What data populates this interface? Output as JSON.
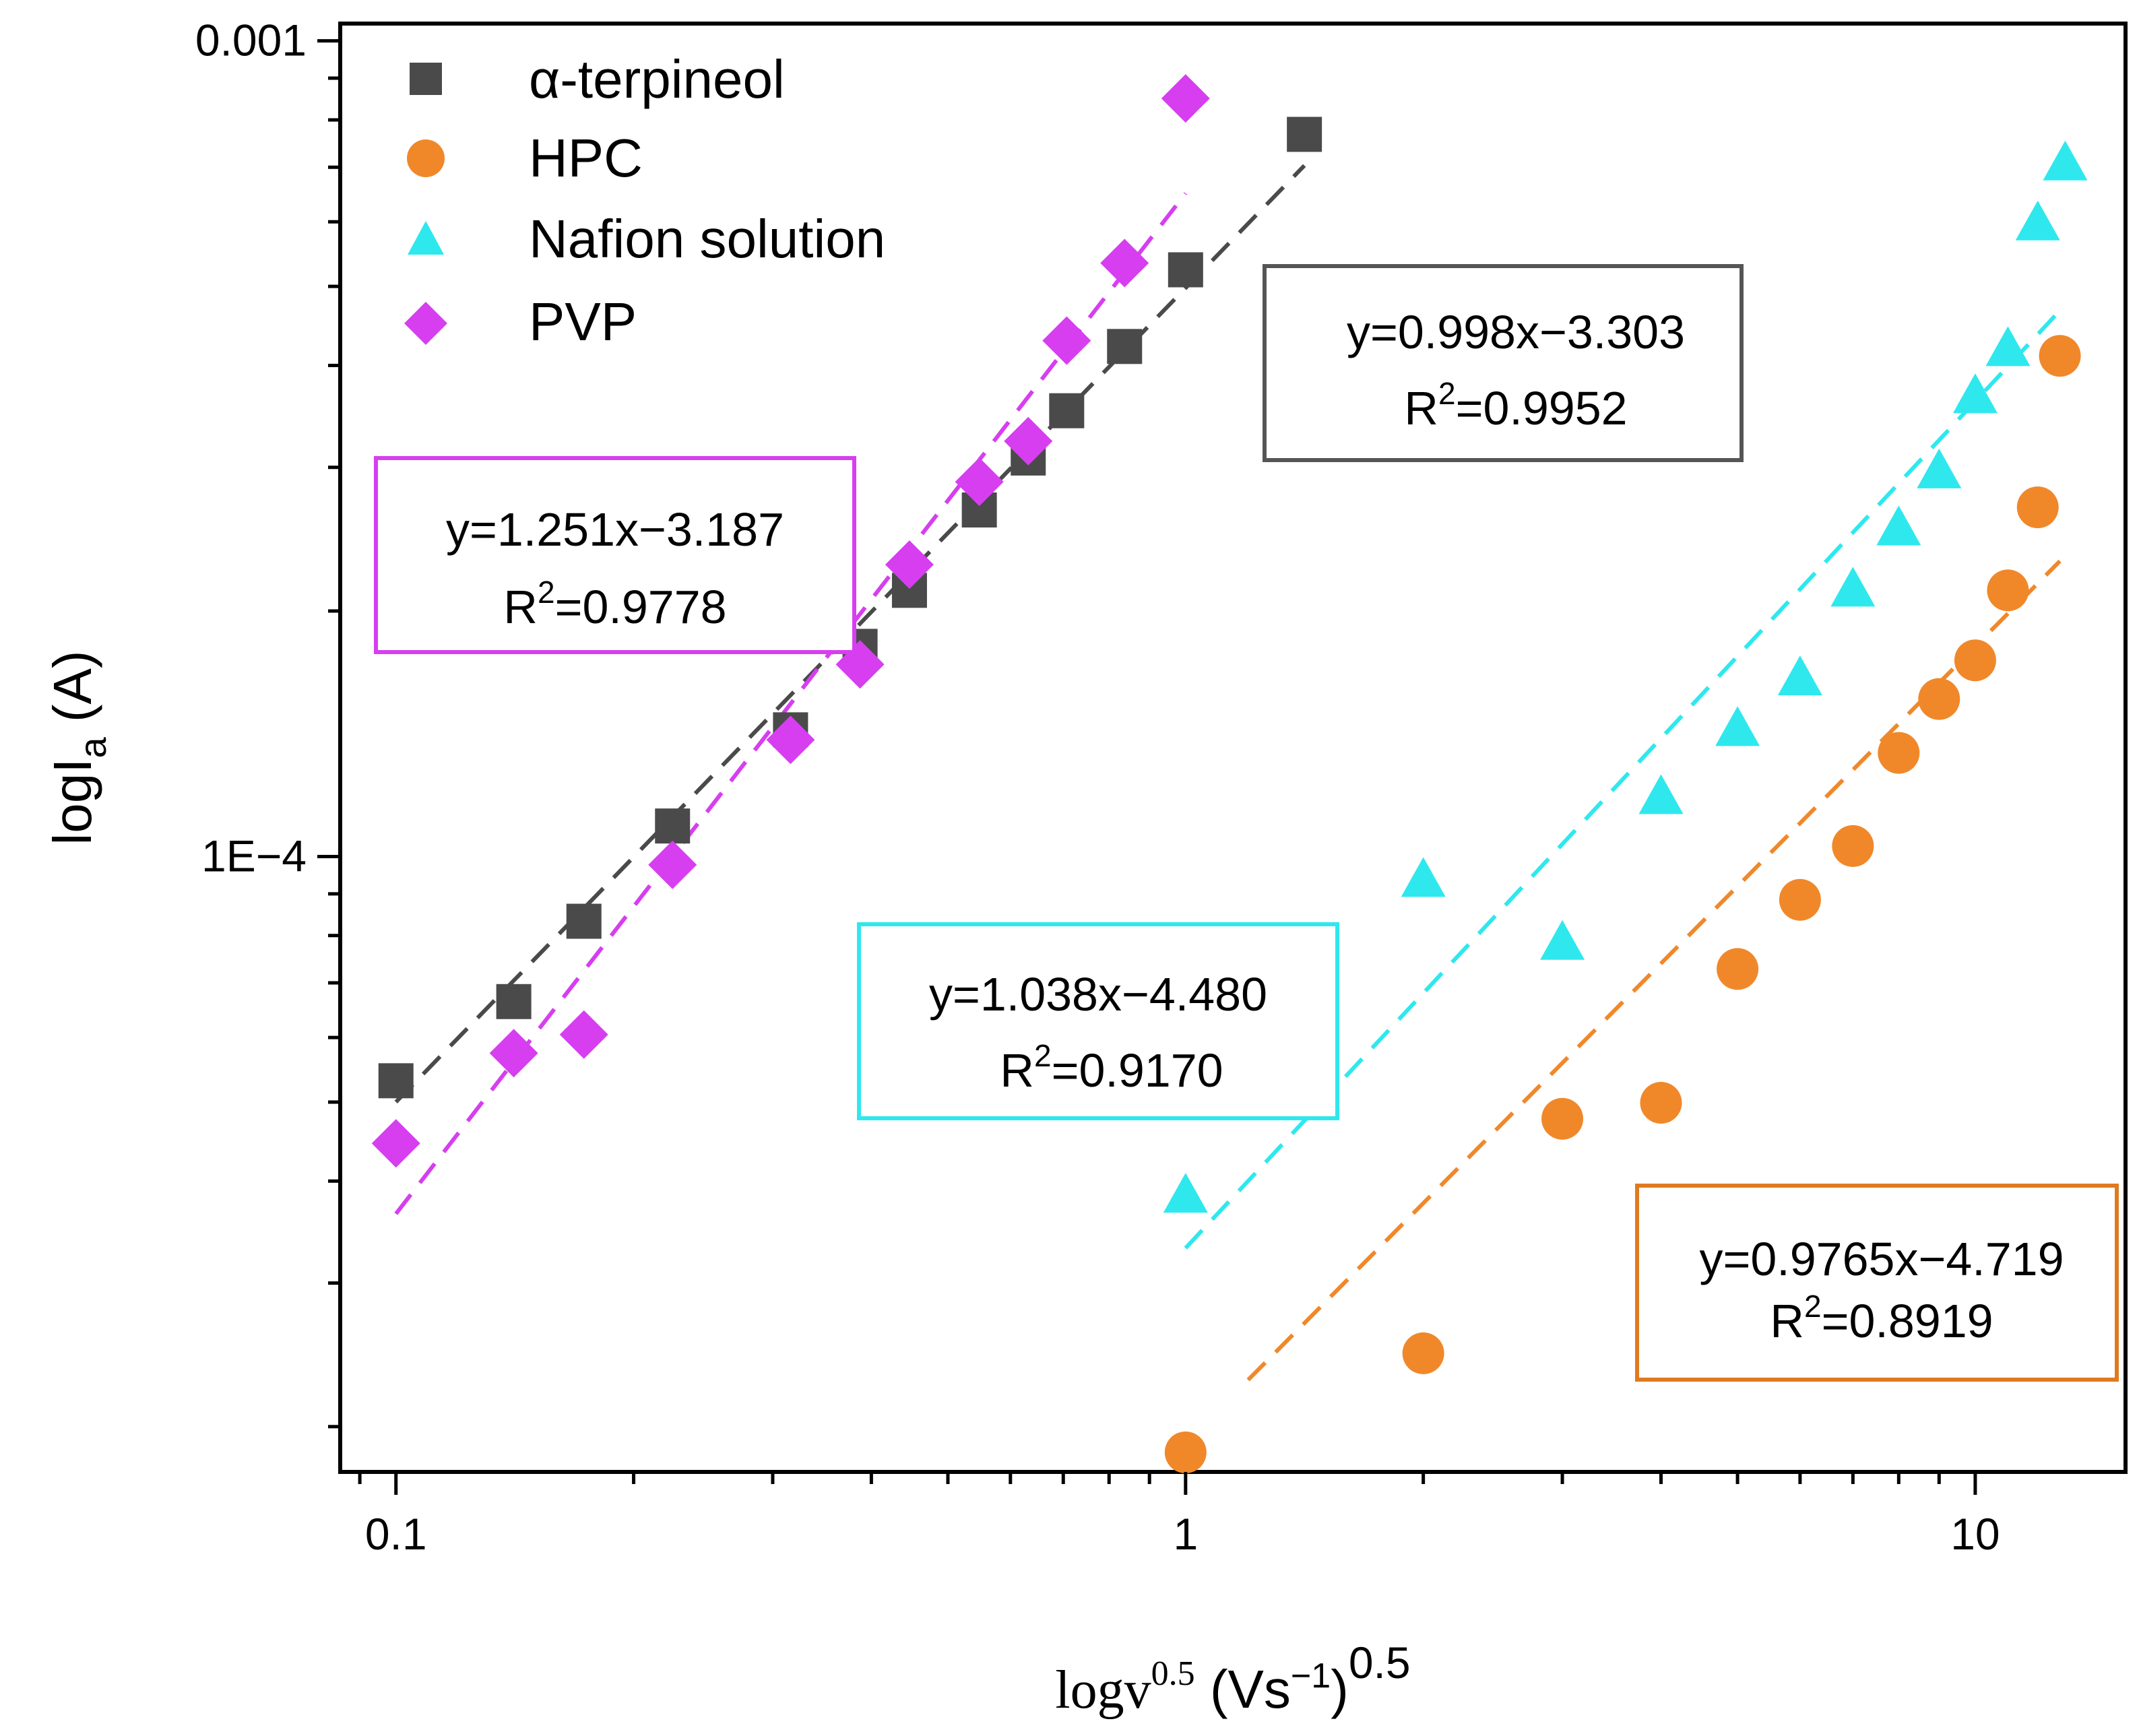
{
  "chart_data": {
    "type": "scatter",
    "xlabel": {
      "main": "logv",
      "sup": "0.5",
      "unit_open": " (Vs",
      "unit_sup": "−1",
      "unit_close": ")",
      "unit_outer_sup": "0.5"
    },
    "ylabel": {
      "main": "logI",
      "sub": "a",
      "unit": " (A)"
    },
    "xscale": "log",
    "yscale": "log",
    "xlim": [
      0.085,
      15.5
    ],
    "ylim": [
      1.76e-05,
      0.00105
    ],
    "xticks": [
      {
        "value": 0.1,
        "label": "0.1"
      },
      {
        "value": 1,
        "label": "1"
      },
      {
        "value": 10,
        "label": "10"
      }
    ],
    "yticks": [
      {
        "value": 0.001,
        "label": "0.001"
      },
      {
        "value": 0.0001,
        "label": "1E−4"
      }
    ],
    "legend_position": "top-left",
    "series": [
      {
        "name": "α-terpineol",
        "marker": "square",
        "color": "#4a4a4a",
        "x": [
          0.1,
          0.141,
          0.173,
          0.224,
          0.316,
          0.387,
          0.447,
          0.548,
          0.632,
          0.707,
          0.837,
          1.0,
          1.414
        ],
        "y": [
          5.31e-05,
          6.64e-05,
          8.33e-05,
          0.000109,
          0.000143,
          0.000181,
          0.000212,
          0.000266,
          0.000308,
          0.000352,
          0.000422,
          0.000524,
          0.000768
        ],
        "fit": {
          "slope": 0.998,
          "intercept": -3.303,
          "x_range": [
            0.1,
            1.414
          ]
        }
      },
      {
        "name": "HPC",
        "marker": "circle",
        "color": "#f0882a",
        "x": [
          1.0,
          2.0,
          3.0,
          4.0,
          5.0,
          6.0,
          7.0,
          8.0,
          9.0,
          10.0,
          11.0,
          12.0,
          12.8
        ],
        "y": [
          1.86e-05,
          2.46e-05,
          4.77e-05,
          4.99e-05,
          7.28e-05,
          8.85e-05,
          0.000103,
          0.000134,
          0.000156,
          0.000174,
          0.000212,
          0.000268,
          0.000411
        ],
        "fit": {
          "slope": 0.9765,
          "intercept": -4.719,
          "x_range": [
            1.2,
            12.8
          ]
        }
      },
      {
        "name": "Nafion solution",
        "marker": "triangle",
        "color": "#2ee8ee",
        "x": [
          1.0,
          2.0,
          3.0,
          4.0,
          5.0,
          6.0,
          7.0,
          8.0,
          9.0,
          10.0,
          11.0,
          12.0,
          13.0
        ],
        "y": [
          3.83e-05,
          9.34e-05,
          7.82e-05,
          0.000118,
          0.000143,
          0.000165,
          0.000212,
          0.000252,
          0.000296,
          0.000366,
          0.000418,
          0.000596,
          0.000706
        ],
        "fit": {
          "slope": 1.038,
          "intercept": -4.48,
          "x_range": [
            1.0,
            12.8
          ]
        }
      },
      {
        "name": "PVP",
        "marker": "diamond",
        "color": "#d63ef0",
        "x": [
          0.1,
          0.141,
          0.173,
          0.224,
          0.316,
          0.387,
          0.447,
          0.548,
          0.632,
          0.707,
          0.837,
          1.0
        ],
        "y": [
          4.45e-05,
          5.74e-05,
          6.05e-05,
          9.77e-05,
          0.000139,
          0.000172,
          0.000228,
          0.000288,
          0.000323,
          0.000429,
          0.000534,
          0.00085
        ],
        "fit": {
          "slope": 1.251,
          "intercept": -3.187,
          "x_range": [
            0.1,
            1.0
          ]
        }
      }
    ],
    "annotations": [
      {
        "series": "α-terpineol",
        "line1": "y=0.998x−3.303",
        "r2_label": "R",
        "r2_sup": "2",
        "r2_value": "=0.9952",
        "color": "#555555"
      },
      {
        "series": "PVP",
        "line1": "y=1.251x−3.187",
        "r2_label": "R",
        "r2_sup": "2",
        "r2_value": "=0.9778",
        "color": "#d63ef0"
      },
      {
        "series": "Nafion solution",
        "line1": "y=1.038x−4.480",
        "r2_label": "R",
        "r2_sup": "2",
        "r2_value": "=0.9170",
        "color": "#2ee8ee"
      },
      {
        "series": "HPC",
        "line1": "y=0.9765x−4.719",
        "r2_label": "R",
        "r2_sup": "2",
        "r2_value": "=0.8919",
        "color": "#e07a20"
      }
    ]
  }
}
